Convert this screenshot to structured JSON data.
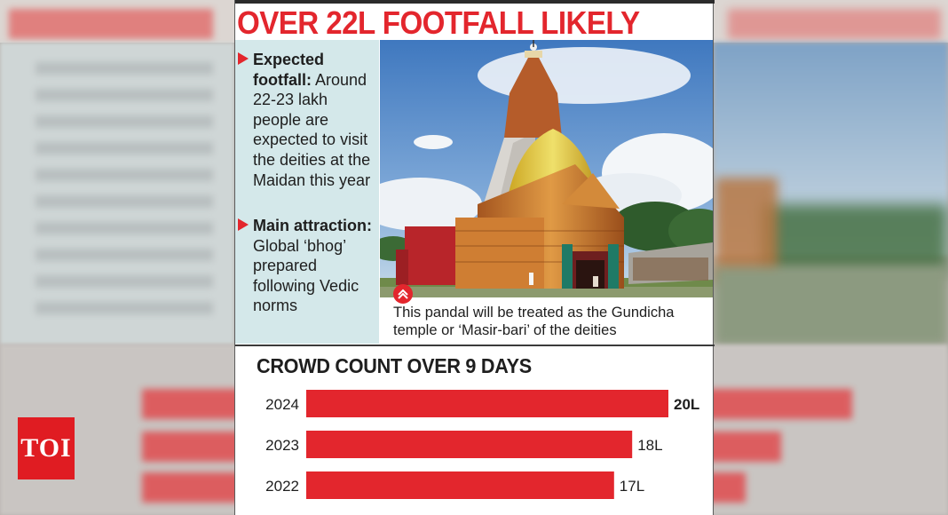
{
  "brand": {
    "logo_text": "TOI",
    "accent_color": "#e3262d",
    "panel_color": "#d4e8ea"
  },
  "headline": "OVER 22L FOOTFALL LIKELY",
  "info": {
    "items": [
      {
        "key": "Expected footfall:",
        "text": "Around 22-23 lakh people are expected to visit the deities at the Maidan this year"
      },
      {
        "key": "Main attraction:",
        "text": "Global ‘bhog’ prepared following Vedic norms"
      }
    ]
  },
  "photo": {
    "caption": "This pandal will be treated as the Gundicha temple or ‘Masir-bari’ of the deities",
    "caption_icon": "chevron-up-icon"
  },
  "chart_data": {
    "type": "bar",
    "orientation": "horizontal",
    "title": "CROWD COUNT OVER 9 DAYS",
    "categories": [
      "2024",
      "2023",
      "2022"
    ],
    "values": [
      20,
      18,
      17
    ],
    "value_labels": [
      "20L",
      "18L",
      "17L"
    ],
    "unit": "L",
    "bar_color": "#e3262d",
    "xlim": [
      0,
      20
    ],
    "grid": false
  }
}
